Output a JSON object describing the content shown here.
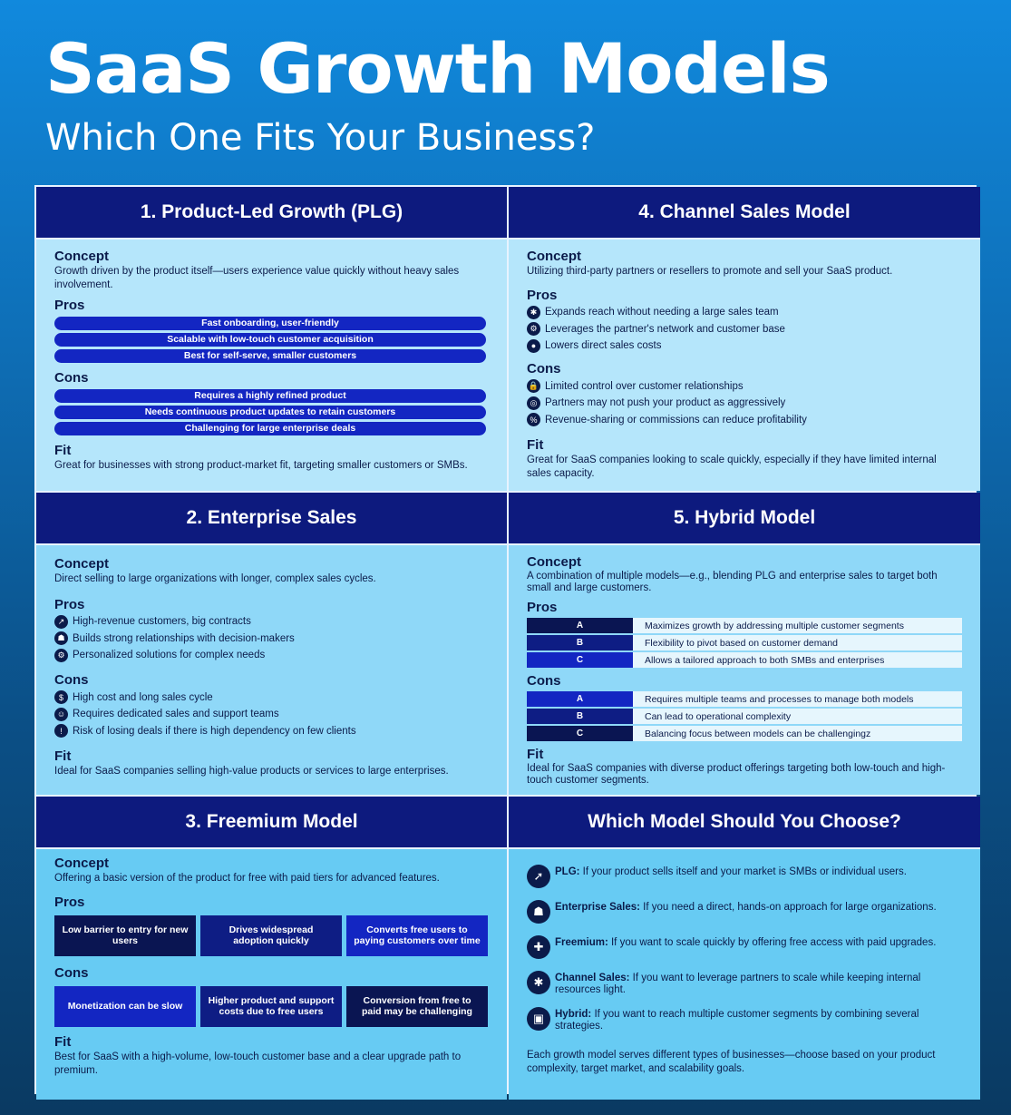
{
  "title": "SaaS Growth Models",
  "subtitle": "Which One Fits Your Business?",
  "labels": {
    "concept": "Concept",
    "pros": "Pros",
    "cons": "Cons",
    "fit": "Fit"
  },
  "plg": {
    "heading": "1. Product-Led Growth (PLG)",
    "concept": "Growth driven by the product itself—users experience value quickly without heavy sales involvement.",
    "pros": [
      "Fast onboarding, user-friendly",
      "Scalable with low-touch customer acquisition",
      "Best for self-serve, smaller customers"
    ],
    "cons": [
      "Requires a highly refined product",
      "Needs continuous product updates to retain customers",
      "Challenging for large enterprise deals"
    ],
    "fit": "Great for businesses with strong product-market fit, targeting smaller customers or SMBs.",
    "pill_color": "#1326c2"
  },
  "channel": {
    "heading": "4. Channel Sales Model",
    "concept": "Utilizing third-party partners or resellers to promote and sell your SaaS product.",
    "pros": [
      {
        "icon": "handshake-icon",
        "glyph": "✱",
        "text": "Expands reach without needing a large sales team"
      },
      {
        "icon": "network-icon",
        "glyph": "⚙",
        "text": "Leverages the partner's network and customer base"
      },
      {
        "icon": "piggy-bank-icon",
        "glyph": "●",
        "text": "Lowers direct sales costs"
      }
    ],
    "cons": [
      {
        "icon": "lock-icon",
        "glyph": "🔒",
        "text": "Limited control over customer relationships"
      },
      {
        "icon": "target-icon",
        "glyph": "◎",
        "text": "Partners may not push your product as aggressively"
      },
      {
        "icon": "percent-icon",
        "glyph": "%",
        "text": "Revenue-sharing or commissions can reduce profitability"
      }
    ],
    "fit": "Great for SaaS companies looking to scale quickly, especially if they have limited internal sales capacity."
  },
  "enterprise": {
    "heading": "2. Enterprise Sales",
    "concept": "Direct selling to large organizations with longer, complex sales cycles.",
    "pros": [
      {
        "icon": "chart-icon",
        "glyph": "↗",
        "text": "High-revenue customers, big contracts"
      },
      {
        "icon": "people-icon",
        "glyph": "☗",
        "text": "Builds strong relationships with decision-makers"
      },
      {
        "icon": "gear-icon",
        "glyph": "⚙",
        "text": "Personalized solutions for complex needs"
      }
    ],
    "cons": [
      {
        "icon": "dollar-icon",
        "glyph": "$",
        "text": "High cost and long sales cycle"
      },
      {
        "icon": "team-icon",
        "glyph": "☺",
        "text": "Requires dedicated sales and support teams"
      },
      {
        "icon": "warning-icon",
        "glyph": "!",
        "text": "Risk of losing deals if there is high dependency on few clients"
      }
    ],
    "fit": "Ideal for SaaS companies selling high-value products or services to large enterprises."
  },
  "hybrid": {
    "heading": "5. Hybrid Model",
    "concept": "A combination of multiple models—e.g., blending PLG and enterprise sales to target both small and large customers.",
    "pros": [
      {
        "key": "A",
        "text": "Maximizes growth by addressing multiple customer segments",
        "color": "#0a1552"
      },
      {
        "key": "B",
        "text": "Flexibility to pivot based on customer demand",
        "color": "#0e1d84"
      },
      {
        "key": "C",
        "text": "Allows a tailored approach to both SMBs and enterprises",
        "color": "#1326c2"
      }
    ],
    "cons": [
      {
        "key": "A",
        "text": "Requires multiple teams and processes to manage both models",
        "color": "#1326c2"
      },
      {
        "key": "B",
        "text": "Can lead to operational complexity",
        "color": "#0e1d84"
      },
      {
        "key": "C",
        "text": "Balancing focus between models can be challengingz",
        "color": "#0a1552"
      }
    ],
    "fit": "Ideal for SaaS companies with diverse product offerings targeting both low-touch and high-touch customer segments."
  },
  "freemium": {
    "heading": "3. Freemium Model",
    "concept": "Offering a basic version of the product for free with paid tiers for advanced features.",
    "pros": [
      {
        "text": "Low barrier to entry for new users",
        "color": "#0a1552"
      },
      {
        "text": "Drives widespread adoption quickly",
        "color": "#0e1d84"
      },
      {
        "text": "Converts free users to paying customers over time",
        "color": "#1326c2"
      }
    ],
    "cons": [
      {
        "text": "Monetization can be slow",
        "color": "#1326c2"
      },
      {
        "text": "Higher product and support costs due to free users",
        "color": "#0e1d84"
      },
      {
        "text": "Conversion from free to paid may be challenging",
        "color": "#0a1552"
      }
    ],
    "fit": "Best for SaaS with a high-volume, low-touch customer base and a clear upgrade path to premium."
  },
  "choose": {
    "heading": "Which Model Should You Choose?",
    "items": [
      {
        "icon": "rocket-icon",
        "glyph": "➚",
        "label": "PLG:",
        "text": " If your product sells itself and your market is SMBs or individual users."
      },
      {
        "icon": "enterprise-team-icon",
        "glyph": "☗",
        "label": "Enterprise Sales:",
        "text": " If you need a direct, hands-on approach for large organizations."
      },
      {
        "icon": "gift-icon",
        "glyph": "✚",
        "label": "Freemium:",
        "text": " If you want to scale quickly by offering free access with paid upgrades."
      },
      {
        "icon": "puzzle-icon",
        "glyph": "✱",
        "label": "Channel Sales:",
        "text": " If you want to leverage partners to scale while keeping internal resources light."
      },
      {
        "icon": "hybrid-icon",
        "glyph": "▣",
        "label": "Hybrid:",
        "text": " If you want to reach multiple customer segments by combining several strategies."
      }
    ],
    "footer": "Each growth model serves different types of businesses—choose based on your product complexity, target market, and scalability goals."
  }
}
